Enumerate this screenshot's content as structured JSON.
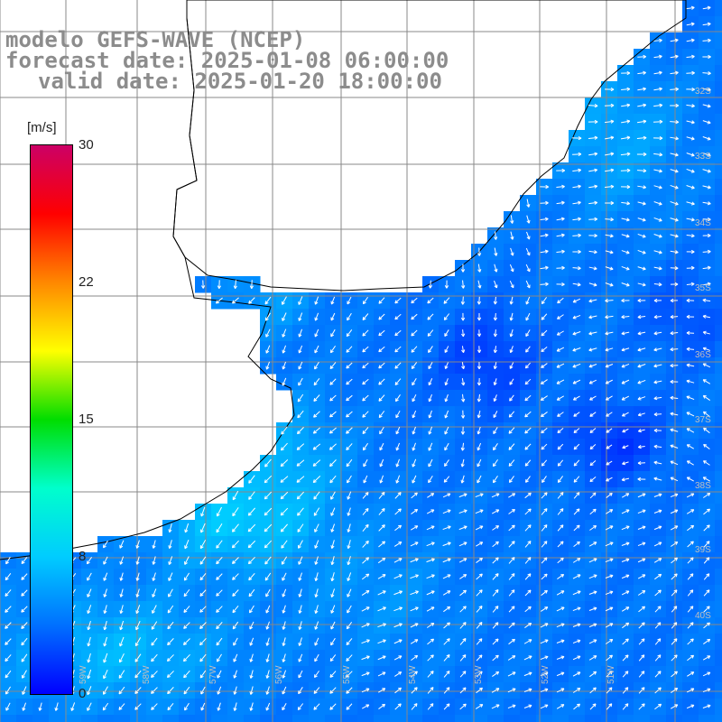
{
  "title": {
    "line1": "modelo GEFS-WAVE (NCEP)",
    "line2": "forecast date: 2025-01-08 06:00:00",
    "line3": "valid date: 2025-01-20 18:00:00"
  },
  "colorbar": {
    "units": "[m/s]",
    "ticks": [
      {
        "label": "30",
        "value": 30
      },
      {
        "label": "22",
        "value": 22
      },
      {
        "label": "15",
        "value": 15
      },
      {
        "label": "8",
        "value": 8
      },
      {
        "label": "0",
        "value": 0
      }
    ],
    "min": 0,
    "max": 30,
    "colors": [
      "#0000ff",
      "#0070ff",
      "#00ccff",
      "#00ffcc",
      "#00dd00",
      "#ffff00",
      "#ff8800",
      "#ff0000",
      "#cc0066"
    ]
  },
  "grid": {
    "lat_labels": [
      "32S",
      "33S",
      "34S",
      "35S",
      "36S",
      "37S",
      "38S",
      "39S",
      "40S"
    ],
    "lon_labels": [
      "59W",
      "58W",
      "57W",
      "56W",
      "55W",
      "54W",
      "53W",
      "52W",
      "51W"
    ]
  },
  "colors": {
    "land": "#ffffff",
    "coast": "#000000",
    "grid": "#888888",
    "arrow": "#ffffff",
    "title": "#8c8c8c"
  }
}
